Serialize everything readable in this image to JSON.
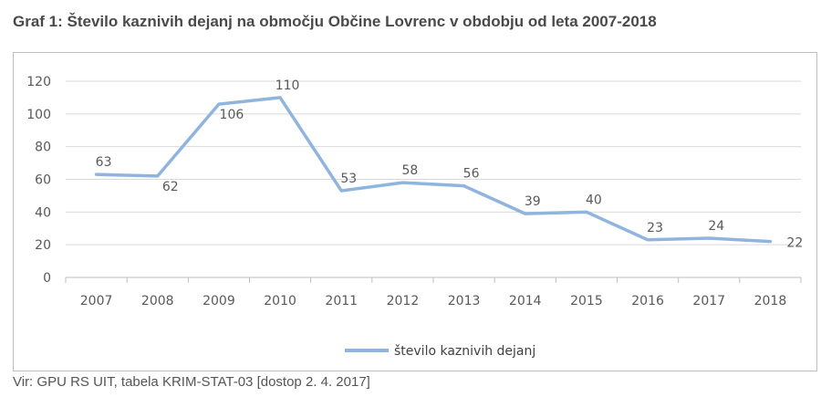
{
  "title": "Graf 1: Število kaznivih dejanj na območju Občine Lovrenc v obdobju od leta 2007-2018",
  "source": "Vir: GPU RS UIT, tabela KRIM-STAT-03 [dostop 2. 4. 2017]",
  "chart_data": {
    "type": "line",
    "title": "Graf 1: Število kaznivih dejanj na območju Občine Lovrenc v obdobju od leta 2007-2018",
    "xlabel": "",
    "ylabel": "",
    "categories": [
      "2007",
      "2008",
      "2009",
      "2010",
      "2011",
      "2012",
      "2013",
      "2014",
      "2015",
      "2016",
      "2017",
      "2018"
    ],
    "series": [
      {
        "name": "število kaznivih dejanj",
        "values": [
          63,
          62,
          106,
          110,
          53,
          58,
          56,
          39,
          40,
          23,
          24,
          22
        ],
        "color": "#8fb4de"
      }
    ],
    "ylim": [
      0,
      120
    ],
    "yticks": [
      0,
      20,
      40,
      60,
      80,
      100,
      120
    ],
    "grid": true,
    "legend": "bottom-center"
  }
}
